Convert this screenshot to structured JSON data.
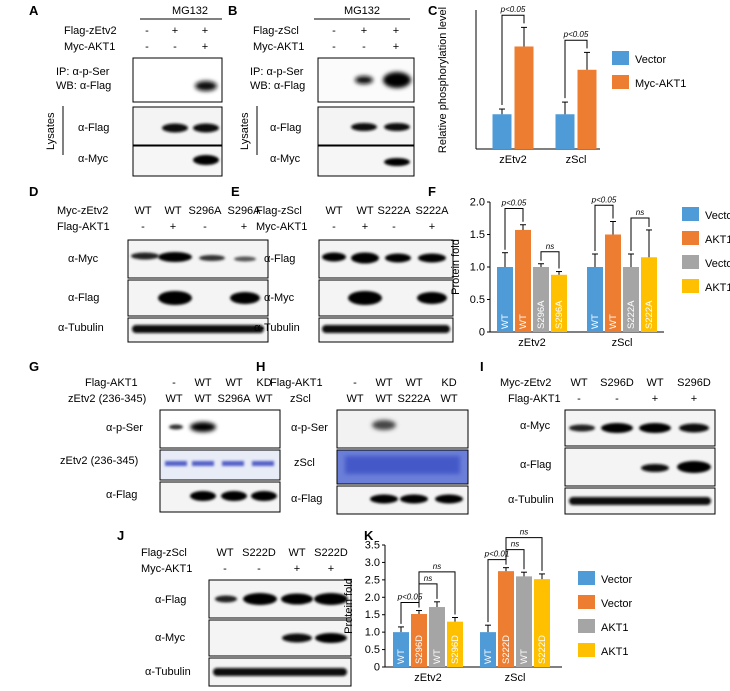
{
  "panels": {
    "A": {
      "letter": "A",
      "treatment": "MG132",
      "rows": [
        {
          "label": "Flag-zEtv2",
          "signs": [
            "-",
            "+",
            "+"
          ]
        },
        {
          "label": "Myc-AKT1",
          "signs": [
            "-",
            "-",
            "+"
          ]
        }
      ],
      "blots": {
        "ip": [
          "IP: α-p-Ser",
          "WB: α-Flag"
        ],
        "lysates": "Lysates",
        "flag": "α-Flag",
        "myc": "α-Myc"
      }
    },
    "B": {
      "letter": "B",
      "treatment": "MG132",
      "rows": [
        {
          "label": "Flag-zScl",
          "signs": [
            "-",
            "+",
            "+"
          ]
        },
        {
          "label": "Myc-AKT1",
          "signs": [
            "-",
            "-",
            "+"
          ]
        }
      ],
      "blots": {
        "ip": [
          "IP: α-p-Ser",
          "WB: α-Flag"
        ],
        "lysates": "Lysates",
        "flag": "α-Flag",
        "myc": "α-Myc"
      }
    },
    "D": {
      "letter": "D",
      "rows": [
        {
          "label": "Myc-zEtv2",
          "signs": [
            "WT",
            "WT",
            "S296A",
            "S296A"
          ]
        },
        {
          "label": "Flag-AKT1",
          "signs": [
            "-",
            "+",
            "-",
            "+"
          ]
        }
      ],
      "blots": [
        "α-Myc",
        "α-Flag",
        "α-Tubulin"
      ]
    },
    "E": {
      "letter": "E",
      "rows": [
        {
          "label": "Flag-zScl",
          "signs": [
            "WT",
            "WT",
            "S222A",
            "S222A"
          ]
        },
        {
          "label": "Myc-AKT1",
          "signs": [
            "-",
            "+",
            "-",
            "+"
          ]
        }
      ],
      "blots": [
        "α-Flag",
        "α-Myc",
        "α-Tubulin"
      ]
    },
    "G": {
      "letter": "G",
      "rows": [
        {
          "label": "Flag-AKT1",
          "signs": [
            "-",
            "WT",
            "WT",
            "KD"
          ]
        },
        {
          "label": "zEtv2 (236-345)",
          "signs": [
            "WT",
            "WT",
            "S296A",
            "WT"
          ]
        }
      ],
      "blots": [
        "α-p-Ser",
        "zEtv2 (236-345)",
        "α-Flag"
      ]
    },
    "H": {
      "letter": "H",
      "rows": [
        {
          "label": "Flag-AKT1",
          "signs": [
            "-",
            "WT",
            "WT",
            "KD"
          ]
        },
        {
          "label": "zScl",
          "signs": [
            "WT",
            "WT",
            "S222A",
            "WT"
          ]
        }
      ],
      "blots": [
        "α-p-Ser",
        "zScl",
        "α-Flag"
      ]
    },
    "I": {
      "letter": "I",
      "rows": [
        {
          "label": "Myc-zEtv2",
          "signs": [
            "WT",
            "S296D",
            "WT",
            "S296D"
          ]
        },
        {
          "label": "Flag-AKT1",
          "signs": [
            "-",
            "-",
            "+",
            "+"
          ]
        }
      ],
      "blots": [
        "α-Myc",
        "α-Flag",
        "α-Tubulin"
      ]
    },
    "J": {
      "letter": "J",
      "rows": [
        {
          "label": "Flag-zScl",
          "signs": [
            "WT",
            "S222D",
            "WT",
            "S222D"
          ]
        },
        {
          "label": "Myc-AKT1",
          "signs": [
            "-",
            "-",
            "+",
            "+"
          ]
        }
      ],
      "blots": [
        "α-Flag",
        "α-Myc",
        "α-Tubulin"
      ]
    }
  },
  "chart_data": [
    {
      "panel": "C",
      "type": "bar",
      "categories": [
        "zEtv2",
        "zScl"
      ],
      "series": [
        {
          "name": "Vector",
          "values": [
            1.0,
            1.0
          ],
          "errors": [
            0.15,
            0.35
          ]
        },
        {
          "name": "Myc-AKT1",
          "values": [
            2.95,
            2.28
          ],
          "errors": [
            0.55,
            0.5
          ]
        }
      ],
      "ylabel": "Relative phosphorylation level",
      "ylim": [
        0,
        4
      ],
      "annotations": [
        "p<0.05",
        "p<0.05"
      ],
      "colors": [
        "#4e9bd8",
        "#ed7d31"
      ],
      "legend": "right"
    },
    {
      "panel": "F",
      "type": "bar",
      "categories": [
        "zEtv2",
        "zScl"
      ],
      "bar_labels": [
        [
          "WT",
          "WT",
          "S296A",
          "S296A"
        ],
        [
          "WT",
          "WT",
          "S222A",
          "S222A"
        ]
      ],
      "series": [
        {
          "name": "Vector",
          "values": [
            1.0,
            1.0
          ],
          "errors": [
            0.22,
            0.2
          ]
        },
        {
          "name": "AKT1",
          "values": [
            1.57,
            1.5
          ],
          "errors": [
            0.08,
            0.2
          ]
        },
        {
          "name": "Vector",
          "values": [
            1.0,
            1.0
          ],
          "errors": [
            0.05,
            0.2
          ]
        },
        {
          "name": "AKT1",
          "values": [
            0.88,
            1.15
          ],
          "errors": [
            0.05,
            0.42
          ]
        }
      ],
      "ylabel": "Protein fold",
      "ylim": [
        0,
        2
      ],
      "yticks": [
        "0",
        "0.5",
        "1.0",
        "1.5",
        "2.0"
      ],
      "annotations": [
        "p<0.05",
        "ns",
        "p<0.05",
        "ns"
      ],
      "colors": [
        "#4e9bd8",
        "#ed7d31",
        "#a5a5a5",
        "#ffc000"
      ],
      "legend": "right"
    },
    {
      "panel": "K",
      "type": "bar",
      "categories": [
        "zEtv2",
        "zScl"
      ],
      "bar_labels": [
        [
          "WT",
          "S296D",
          "WT",
          "S296D"
        ],
        [
          "WT",
          "S222D",
          "WT",
          "S222D"
        ]
      ],
      "series": [
        {
          "name": "Vector",
          "values": [
            1.0,
            1.0
          ],
          "errors": [
            0.15,
            0.2
          ]
        },
        {
          "name": "Vector",
          "values": [
            1.52,
            2.75
          ],
          "errors": [
            0.1,
            0.1
          ]
        },
        {
          "name": "AKT1",
          "values": [
            1.72,
            2.6
          ],
          "errors": [
            0.15,
            0.12
          ]
        },
        {
          "name": "AKT1",
          "values": [
            1.3,
            2.52
          ],
          "errors": [
            0.12,
            0.15
          ]
        }
      ],
      "ylabel": "Protein fold",
      "ylim": [
        0,
        3.5
      ],
      "yticks": [
        "0",
        "0.5",
        "1.0",
        "1.5",
        "2.0",
        "2.5",
        "3.0",
        "3.5"
      ],
      "annotations": [
        "p<0.05",
        "ns",
        "ns",
        "p<0.01",
        "ns",
        "ns"
      ],
      "colors": [
        "#4e9bd8",
        "#ed7d31",
        "#a5a5a5",
        "#ffc000"
      ],
      "legend": "right"
    }
  ],
  "letters": {
    "C": "C",
    "F": "F",
    "K": "K"
  }
}
